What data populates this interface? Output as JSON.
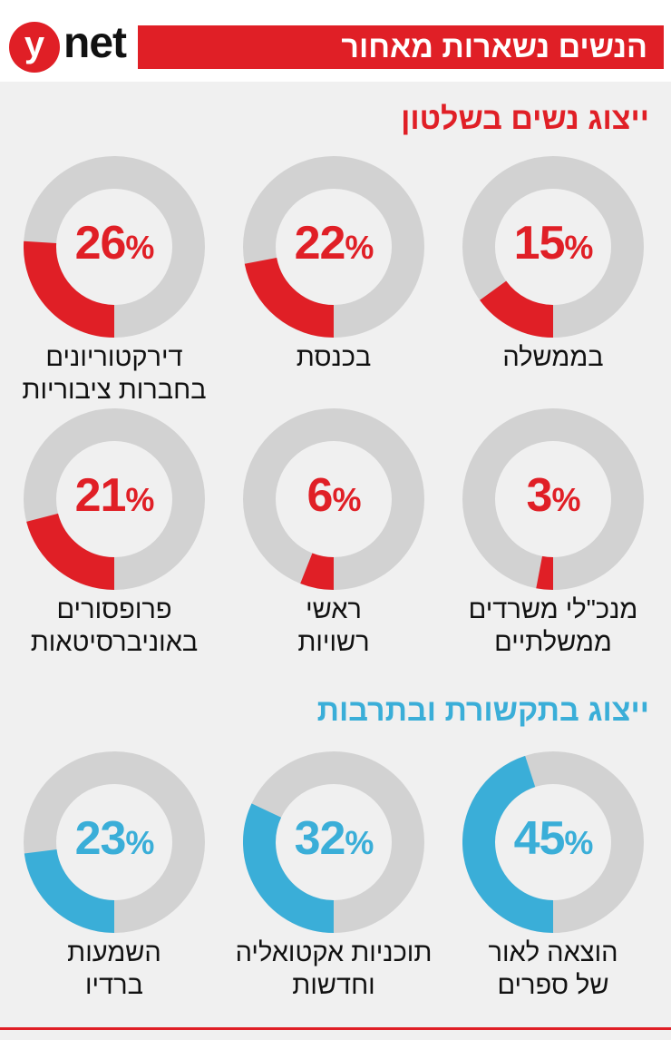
{
  "header": {
    "logo_letter": "y",
    "logo_text": "net",
    "title": "הנשים נשארות מאחור"
  },
  "colors": {
    "red": "#e01f26",
    "blue": "#3aaed8",
    "track": "#d2d2d2"
  },
  "chart_data": [
    {
      "type": "pie",
      "title": "ייצוג נשים בשלטון",
      "color": "#e01f26",
      "items": [
        {
          "label_lines": [
            "בממשלה"
          ],
          "value": 15
        },
        {
          "label_lines": [
            "בכנסת"
          ],
          "value": 22
        },
        {
          "label_lines": [
            "דירקטוריונים",
            "בחברות ציבוריות"
          ],
          "value": 26
        },
        {
          "label_lines": [
            "מנכ\"לי משרדים",
            "ממשלתיים"
          ],
          "value": 3
        },
        {
          "label_lines": [
            "ראשי",
            "רשויות"
          ],
          "value": 6
        },
        {
          "label_lines": [
            "פרופסורים",
            "באוניברסיטאות"
          ],
          "value": 21
        }
      ]
    },
    {
      "type": "pie",
      "title": "ייצוג בתקשורת ובתרבות",
      "color": "#3aaed8",
      "items": [
        {
          "label_lines": [
            "הוצאה לאור",
            "של ספרים"
          ],
          "value": 45
        },
        {
          "label_lines": [
            "תוכניות אקטואליה",
            "וחדשות"
          ],
          "value": 32
        },
        {
          "label_lines": [
            "השמעות",
            "ברדיו"
          ],
          "value": 23
        }
      ]
    }
  ],
  "percent_sign": "%"
}
